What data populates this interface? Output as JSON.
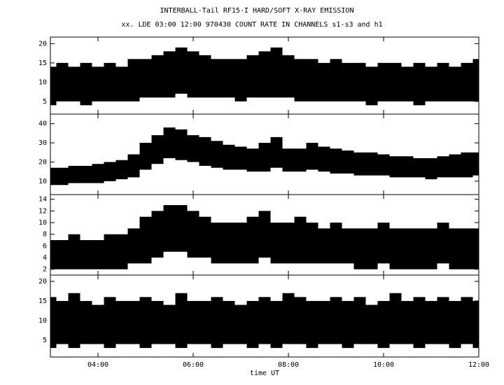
{
  "chart_data": [
    {
      "type": "band",
      "title": "INTERBALL-Tail RF15-I HARD/SOFT X-RAY EMISSION",
      "subtitle": "xx. LDE 03:00 12:00 970430  COUNT RATE IN CHANNELS s1-s3 and h1",
      "color": "#000000",
      "x": [
        3,
        3.25,
        3.5,
        3.75,
        4,
        4.25,
        4.5,
        4.75,
        5,
        5.25,
        5.5,
        5.75,
        6,
        6.25,
        6.5,
        6.75,
        7,
        7.25,
        7.5,
        7.75,
        8,
        8.25,
        8.5,
        8.75,
        9,
        9.25,
        9.5,
        9.75,
        10,
        10.25,
        10.5,
        10.75,
        11,
        11.25,
        11.5,
        11.75,
        12
      ],
      "high": [
        14,
        15,
        14,
        15,
        14,
        15,
        14,
        16,
        16,
        17,
        18,
        19,
        18,
        17,
        16,
        16,
        16,
        17,
        18,
        19,
        17,
        16,
        16,
        15,
        16,
        15,
        15,
        14,
        15,
        15,
        14,
        15,
        14,
        15,
        14,
        15,
        16
      ],
      "low": [
        4,
        5,
        5,
        4,
        5,
        5,
        5,
        5,
        6,
        6,
        6,
        7,
        6,
        6,
        6,
        6,
        5,
        6,
        6,
        6,
        6,
        5,
        5,
        5,
        5,
        5,
        5,
        4,
        5,
        5,
        5,
        4,
        5,
        5,
        5,
        5,
        5
      ],
      "xlim": [
        3,
        12
      ],
      "xticks": [
        {
          "value": 4,
          "label": "04:00"
        },
        {
          "value": 6,
          "label": "06:00"
        },
        {
          "value": 8,
          "label": "08:00"
        },
        {
          "value": 10,
          "label": "10:00"
        },
        {
          "value": 12,
          "label": "12:00"
        }
      ],
      "ylim": [
        1.7,
        21.7
      ],
      "yticks": [
        5,
        10,
        15,
        20
      ]
    },
    {
      "type": "band",
      "color": "#000000",
      "x": [
        3,
        3.25,
        3.5,
        3.75,
        4,
        4.25,
        4.5,
        4.75,
        5,
        5.25,
        5.5,
        5.75,
        6,
        6.25,
        6.5,
        6.75,
        7,
        7.25,
        7.5,
        7.75,
        8,
        8.25,
        8.5,
        8.75,
        9,
        9.25,
        9.5,
        9.75,
        10,
        10.25,
        10.5,
        10.75,
        11,
        11.25,
        11.5,
        11.75,
        12
      ],
      "high": [
        17,
        17,
        18,
        18,
        19,
        20,
        21,
        24,
        30,
        34,
        38,
        37,
        34,
        33,
        31,
        29,
        28,
        27,
        30,
        33,
        27,
        27,
        30,
        28,
        27,
        26,
        25,
        25,
        24,
        23,
        23,
        22,
        22,
        23,
        24,
        25,
        25
      ],
      "low": [
        8,
        8,
        9,
        9,
        9,
        10,
        11,
        12,
        16,
        19,
        22,
        21,
        20,
        18,
        17,
        16,
        16,
        15,
        15,
        17,
        15,
        15,
        16,
        15,
        14,
        14,
        13,
        13,
        13,
        12,
        12,
        12,
        11,
        12,
        12,
        12,
        13
      ],
      "xlim": [
        3,
        12
      ],
      "xticks": [
        {
          "value": 4,
          "label": "04:00"
        },
        {
          "value": 6,
          "label": "06:00"
        },
        {
          "value": 8,
          "label": "08:00"
        },
        {
          "value": 10,
          "label": "10:00"
        },
        {
          "value": 12,
          "label": "12:00"
        }
      ],
      "ylim": [
        3,
        45
      ],
      "yticks": [
        10,
        20,
        30,
        40
      ]
    },
    {
      "type": "band",
      "color": "#000000",
      "x": [
        3,
        3.25,
        3.5,
        3.75,
        4,
        4.25,
        4.5,
        4.75,
        5,
        5.25,
        5.5,
        5.75,
        6,
        6.25,
        6.5,
        6.75,
        7,
        7.25,
        7.5,
        7.75,
        8,
        8.25,
        8.5,
        8.75,
        9,
        9.25,
        9.5,
        9.75,
        10,
        10.25,
        10.5,
        10.75,
        11,
        11.25,
        11.5,
        11.75,
        12
      ],
      "high": [
        7,
        7,
        8,
        7,
        7,
        8,
        8,
        9,
        11,
        12,
        13,
        13,
        12,
        11,
        10,
        10,
        10,
        11,
        12,
        10,
        10,
        11,
        10,
        9,
        10,
        9,
        9,
        9,
        10,
        9,
        9,
        9,
        9,
        10,
        9,
        9,
        9
      ],
      "low": [
        2,
        2,
        2,
        2,
        2,
        2,
        2,
        3,
        3,
        4,
        5,
        5,
        4,
        4,
        3,
        3,
        3,
        3,
        4,
        3,
        3,
        3,
        3,
        3,
        3,
        3,
        2,
        2,
        3,
        2,
        2,
        2,
        2,
        3,
        2,
        2,
        2
      ],
      "xlim": [
        3,
        12
      ],
      "xticks": [
        {
          "value": 4,
          "label": "04:00"
        },
        {
          "value": 6,
          "label": "06:00"
        },
        {
          "value": 8,
          "label": "08:00"
        },
        {
          "value": 10,
          "label": "10:00"
        },
        {
          "value": 12,
          "label": "12:00"
        }
      ],
      "ylim": [
        1,
        14.8
      ],
      "yticks": [
        2,
        4,
        6,
        8,
        10,
        12,
        14
      ]
    },
    {
      "type": "band",
      "color": "#000000",
      "xlabel": "time UT",
      "x": [
        3,
        3.25,
        3.5,
        3.75,
        4,
        4.25,
        4.5,
        4.75,
        5,
        5.25,
        5.5,
        5.75,
        6,
        6.25,
        6.5,
        6.75,
        7,
        7.25,
        7.5,
        7.75,
        8,
        8.25,
        8.5,
        8.75,
        9,
        9.25,
        9.5,
        9.75,
        10,
        10.25,
        10.5,
        10.75,
        11,
        11.25,
        11.5,
        11.75,
        12
      ],
      "high": [
        16,
        15,
        17,
        15,
        14,
        16,
        15,
        15,
        16,
        15,
        14,
        17,
        15,
        15,
        16,
        15,
        14,
        15,
        16,
        15,
        17,
        16,
        15,
        15,
        16,
        15,
        16,
        14,
        15,
        17,
        15,
        16,
        15,
        16,
        15,
        16,
        15
      ],
      "low": [
        3,
        4,
        3,
        4,
        4,
        3,
        4,
        4,
        3,
        4,
        4,
        3,
        4,
        4,
        3,
        4,
        4,
        3,
        4,
        3,
        4,
        4,
        3,
        4,
        4,
        3,
        4,
        4,
        3,
        4,
        4,
        3,
        4,
        4,
        3,
        4,
        3
      ],
      "xlim": [
        3,
        12
      ],
      "xticks": [
        {
          "value": 4,
          "label": "04:00"
        },
        {
          "value": 6,
          "label": "06:00"
        },
        {
          "value": 8,
          "label": "08:00"
        },
        {
          "value": 10,
          "label": "10:00"
        },
        {
          "value": 12,
          "label": "12:00"
        }
      ],
      "ylim": [
        0.7,
        21.6
      ],
      "yticks": [
        5,
        10,
        15,
        20
      ]
    }
  ]
}
